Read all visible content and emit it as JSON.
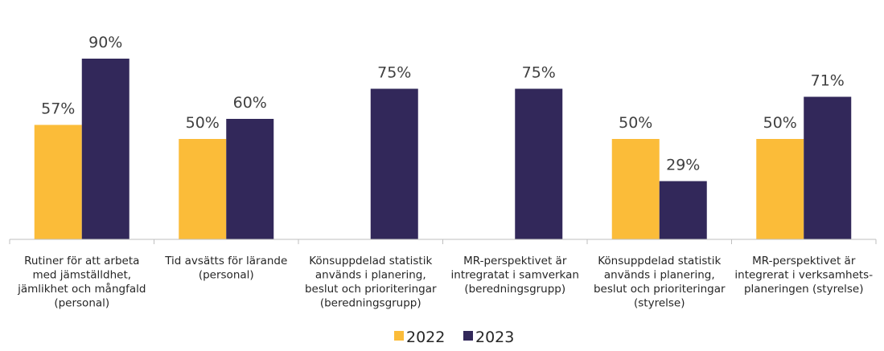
{
  "chart_data": {
    "type": "bar",
    "categories": [
      [
        "Rutiner för att arbeta",
        "med jämställdhet,",
        "jämlikhet och mångfald",
        "(personal)"
      ],
      [
        "Tid avsätts för lärande",
        "(personal)"
      ],
      [
        "Könsuppdelad statistik",
        "används i planering,",
        "beslut och prioriteringar",
        "(beredningsgrupp)"
      ],
      [
        "MR-perspektivet är",
        "intregratat i samverkan",
        "(beredningsgrupp)"
      ],
      [
        "Könsuppdelad statistik",
        "används i planering,",
        "beslut och prioriteringar",
        "(styrelse)"
      ],
      [
        "MR-perspektivet är",
        "integrerat i verksamhets-",
        "planeringen (styrelse)"
      ]
    ],
    "series": [
      {
        "name": "2022",
        "color": "#FBBC39",
        "values": [
          57,
          50,
          null,
          null,
          50,
          50
        ],
        "labels": [
          "57%",
          "50%",
          "",
          "",
          "50%",
          "50%"
        ]
      },
      {
        "name": "2023",
        "color": "#32285A",
        "values": [
          90,
          60,
          75,
          75,
          29,
          71
        ],
        "labels": [
          "90%",
          "60%",
          "75%",
          "75%",
          "29%",
          "71%"
        ]
      }
    ],
    "ylim": [
      0,
      100
    ],
    "grid": false,
    "legend_position": "bottom-center",
    "axis_color": "#BFBFBF"
  }
}
